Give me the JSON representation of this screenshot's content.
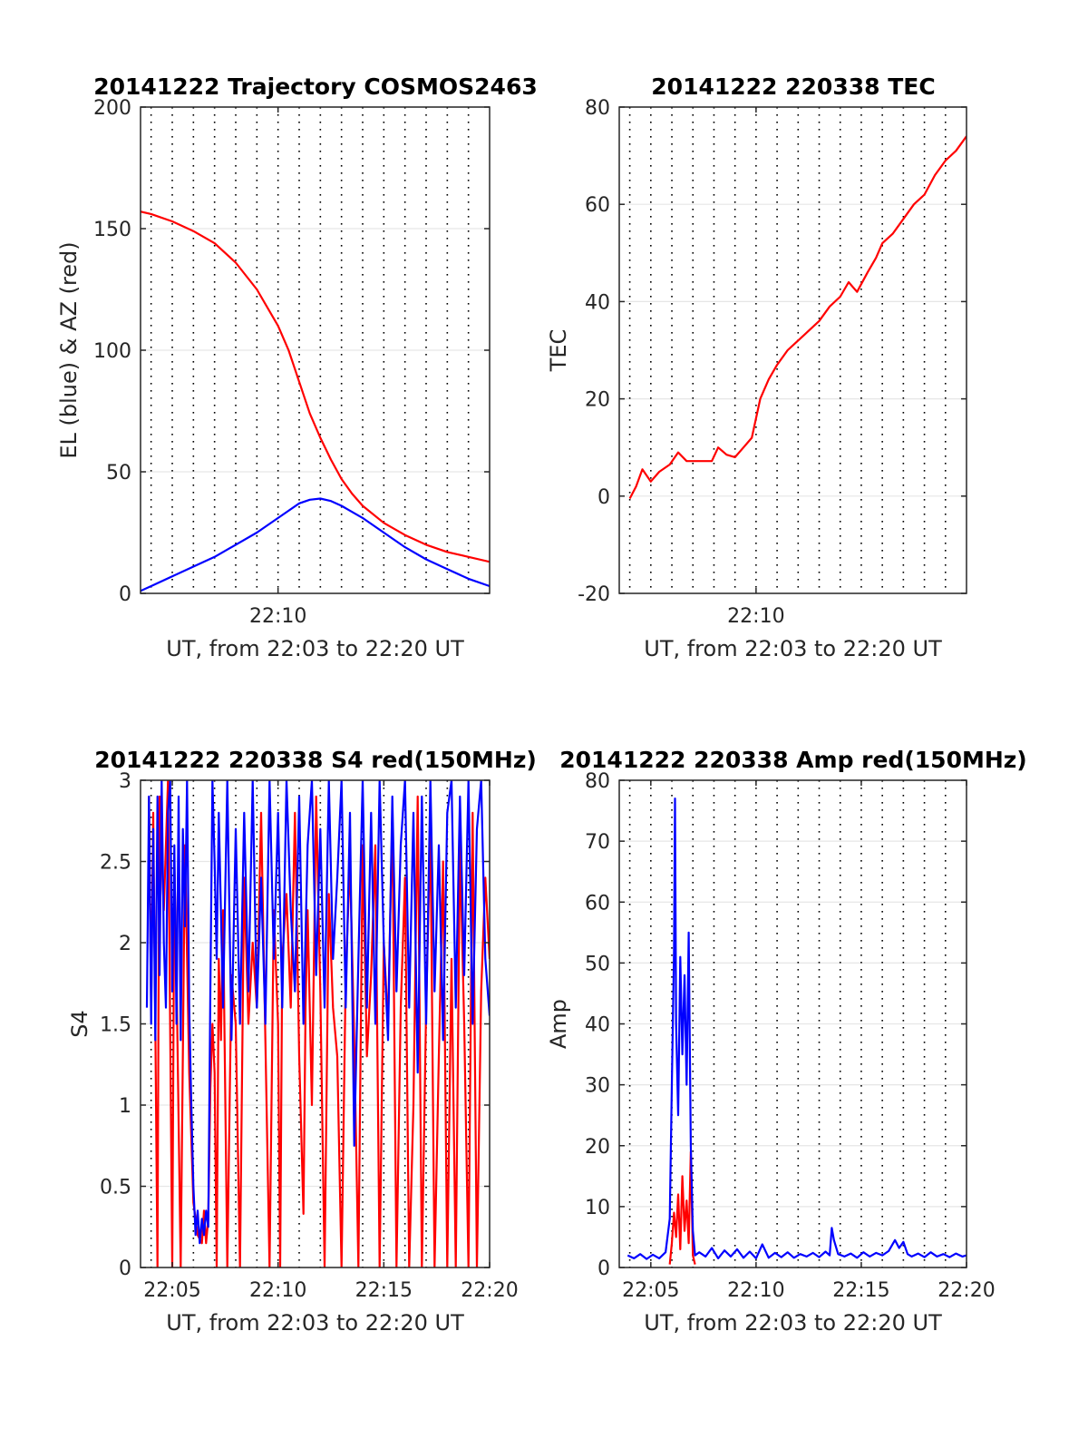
{
  "colors": {
    "red": "#ff0000",
    "blue": "#0000ff",
    "grid_major": "#e6e6e6",
    "grid_minute": "#000000",
    "axes": "#262626"
  },
  "chart_data": [
    {
      "type": "line",
      "title": "20141222 Trajectory COSMOS2463",
      "xlabel": "UT, from 22:03 to 22:20 UT",
      "ylabel": "EL (blue) & AZ (red)",
      "x_unit": "minutes after 22:00 UT",
      "xlim": [
        3.5,
        20
      ],
      "ylim": [
        0,
        200
      ],
      "yticks": [
        "0",
        "50",
        "100",
        "150",
        "200"
      ],
      "xticks": [
        {
          "x": 10,
          "label": "22:10"
        }
      ],
      "minute_gridlines": [
        4,
        5,
        6,
        7,
        8,
        9,
        10,
        11,
        12,
        13,
        14,
        15,
        16,
        17,
        18,
        19
      ],
      "grid": true,
      "series": [
        {
          "color": "red",
          "x": [
            3.5,
            4,
            5,
            6,
            7,
            8,
            9,
            10,
            10.5,
            11,
            11.5,
            12,
            12.5,
            13,
            13.5,
            14,
            15,
            16,
            17,
            18,
            19,
            20
          ],
          "y": [
            157,
            156,
            153,
            149,
            144,
            136,
            125,
            110,
            100,
            87,
            74,
            64,
            55,
            47,
            41,
            36,
            29,
            24,
            20,
            17,
            15,
            13
          ]
        },
        {
          "color": "blue",
          "x": [
            3.5,
            4,
            5,
            6,
            7,
            8,
            9,
            10,
            10.5,
            11,
            11.5,
            12,
            12.5,
            13,
            14,
            15,
            16,
            17,
            18,
            19,
            20
          ],
          "y": [
            1,
            3,
            7,
            11,
            15,
            20,
            25,
            31,
            34,
            37,
            38.5,
            39,
            38,
            36,
            31,
            25,
            19,
            14,
            10,
            6,
            3
          ]
        }
      ]
    },
    {
      "type": "line",
      "title": "20141222 220338 TEC",
      "xlabel": "UT, from 22:03 to 22:20 UT",
      "ylabel": "TEC",
      "x_unit": "minutes after 22:00 UT",
      "xlim": [
        3.5,
        20
      ],
      "ylim": [
        -20,
        80
      ],
      "yticks": [
        "-20",
        "0",
        "20",
        "40",
        "60",
        "80"
      ],
      "xticks": [
        {
          "x": 10,
          "label": "22:10"
        }
      ],
      "minute_gridlines": [
        4,
        5,
        6,
        7,
        8,
        9,
        10,
        11,
        12,
        13,
        14,
        15,
        16,
        17,
        18,
        19
      ],
      "grid": true,
      "series": [
        {
          "color": "red",
          "x": [
            4.0,
            4.3,
            4.6,
            5.0,
            5.4,
            5.9,
            6.3,
            6.7,
            7.0,
            7.5,
            7.9,
            8.2,
            8.6,
            9.0,
            9.4,
            9.8,
            10.2,
            10.6,
            11.0,
            11.5,
            12.0,
            12.5,
            13.0,
            13.5,
            14.0,
            14.4,
            14.8,
            15.3,
            15.7,
            16.0,
            16.5,
            17.0,
            17.5,
            18.0,
            18.5,
            19.0,
            19.5,
            20.0
          ],
          "y": [
            -0.5,
            2,
            5.5,
            3,
            5,
            6.5,
            9,
            7.2,
            7.2,
            7.2,
            7.2,
            10,
            8.5,
            8,
            10,
            12,
            20,
            24,
            27,
            30,
            32,
            34,
            36,
            39,
            41,
            44,
            42,
            46,
            49,
            52,
            54,
            57,
            60,
            62,
            66,
            69,
            71,
            74
          ]
        }
      ]
    },
    {
      "type": "line",
      "title": "20141222 220338 S4 red(150MHz)",
      "xlabel": "UT, from 22:03 to 22:20 UT",
      "ylabel": "S4",
      "x_unit": "minutes after 22:00 UT",
      "xlim": [
        3.5,
        20
      ],
      "ylim": [
        0,
        3
      ],
      "yticks": [
        "0",
        "0.5",
        "1",
        "1.5",
        "2",
        "2.5",
        "3"
      ],
      "xticks": [
        {
          "x": 5,
          "label": "22:05"
        },
        {
          "x": 10,
          "label": "22:10"
        },
        {
          "x": 15,
          "label": "22:15"
        },
        {
          "x": 20,
          "label": "22:20"
        }
      ],
      "minute_gridlines": [
        4,
        5,
        6,
        7,
        8,
        9,
        10,
        11,
        12,
        13,
        14,
        15,
        16,
        17,
        18,
        19
      ],
      "grid": true,
      "series": [
        {
          "color": "red",
          "x": [
            3.9,
            4.0,
            4.1,
            4.2,
            4.3,
            4.35,
            4.4,
            4.6,
            4.8,
            5.0,
            5.1,
            5.2,
            5.4,
            5.6,
            5.8,
            6.0,
            6.2,
            6.4,
            6.5,
            6.6,
            6.7,
            6.8,
            6.9,
            7.0,
            7.1,
            7.2,
            7.3,
            7.4,
            7.6,
            7.8,
            8.0,
            8.2,
            8.4,
            8.6,
            8.8,
            9.0,
            9.2,
            9.4,
            9.6,
            9.8,
            10.0,
            10.1,
            10.2,
            10.4,
            10.6,
            10.8,
            11.0,
            11.2,
            11.3,
            11.4,
            11.6,
            11.8,
            12.0,
            12.2,
            12.4,
            12.6,
            12.8,
            13.0,
            13.2,
            13.4,
            13.6,
            13.8,
            14.0,
            14.2,
            14.4,
            14.6,
            14.8,
            15.0,
            15.2,
            15.4,
            15.6,
            15.8,
            16.0,
            16.2,
            16.4,
            16.6,
            16.8,
            17.0,
            17.2,
            17.4,
            17.6,
            17.8,
            18.0,
            18.2,
            18.4,
            18.6,
            18.8,
            19.0,
            19.2,
            19.4,
            19.6,
            19.8,
            20.0
          ],
          "y": [
            2.9,
            1.6,
            2.8,
            1.5,
            0,
            1.6,
            2.9,
            2.2,
            3.0,
            0,
            2.5,
            1.8,
            0,
            2.6,
            1.2,
            0.4,
            0.2,
            0.15,
            0.35,
            0.15,
            0.3,
            1.1,
            1.5,
            1.2,
            0,
            1.9,
            1.4,
            2.2,
            0,
            1.8,
            1.5,
            0,
            2.4,
            1.5,
            2.0,
            1.6,
            2.8,
            1.4,
            0,
            2.2,
            1.5,
            0,
            1.9,
            2.3,
            1.6,
            2.8,
            1.3,
            0.33,
            1.6,
            2.2,
            1.0,
            2.9,
            1.7,
            0,
            2.3,
            1.6,
            1.3,
            0,
            1.8,
            2.5,
            1.4,
            0,
            2.6,
            1.3,
            1.8,
            2.6,
            0,
            2.0,
            1.5,
            2.8,
            0,
            1.6,
            2.4,
            0,
            1.0,
            2.9,
            0,
            1.6,
            2.7,
            0,
            1.3,
            2.5,
            0,
            1.9,
            0,
            2.6,
            1.5,
            0,
            2.8,
            0,
            1.7,
            2.4,
            1.9
          ]
        },
        {
          "color": "blue",
          "x": [
            3.8,
            3.9,
            4.0,
            4.1,
            4.2,
            4.3,
            4.4,
            4.5,
            4.6,
            4.7,
            4.8,
            4.9,
            5.0,
            5.1,
            5.2,
            5.3,
            5.4,
            5.5,
            5.6,
            5.7,
            5.8,
            5.9,
            6.0,
            6.1,
            6.2,
            6.3,
            6.4,
            6.5,
            6.6,
            6.7,
            6.8,
            6.9,
            7.0,
            7.1,
            7.2,
            7.4,
            7.6,
            7.8,
            8.0,
            8.2,
            8.4,
            8.6,
            8.8,
            9.0,
            9.2,
            9.4,
            9.6,
            9.8,
            10.0,
            10.2,
            10.4,
            10.6,
            10.8,
            11.0,
            11.2,
            11.4,
            11.6,
            11.8,
            12.0,
            12.2,
            12.4,
            12.6,
            12.8,
            13.0,
            13.2,
            13.4,
            13.6,
            13.8,
            14.0,
            14.2,
            14.4,
            14.6,
            14.8,
            15.0,
            15.2,
            15.4,
            15.6,
            15.8,
            16.0,
            16.2,
            16.4,
            16.6,
            16.8,
            17.0,
            17.2,
            17.4,
            17.6,
            17.8,
            18.0,
            18.2,
            18.4,
            18.6,
            18.8,
            19.0,
            19.2,
            19.4,
            19.6,
            19.8,
            20.0
          ],
          "y": [
            1.6,
            2.9,
            1.5,
            2.7,
            1.4,
            2.9,
            1.8,
            3.0,
            2.0,
            1.6,
            2.8,
            3.0,
            1.7,
            2.6,
            1.5,
            2.9,
            1.4,
            2.7,
            2.1,
            3.0,
            1.6,
            1.0,
            0.5,
            0.2,
            0.35,
            0.15,
            0.3,
            0.2,
            0.35,
            0.25,
            1.7,
            3.0,
            2.5,
            1.9,
            2.8,
            1.6,
            3.0,
            1.4,
            2.7,
            1.5,
            2.8,
            1.7,
            3.0,
            1.6,
            2.4,
            1.5,
            3.0,
            1.9,
            2.8,
            1.6,
            3.0,
            2.2,
            1.7,
            2.9,
            1.5,
            2.6,
            3.0,
            1.8,
            2.7,
            1.6,
            3.0,
            1.9,
            2.4,
            3.0,
            1.6,
            2.8,
            0.75,
            1.9,
            3.0,
            1.6,
            2.8,
            1.5,
            3.0,
            2.0,
            1.4,
            2.9,
            1.7,
            2.6,
            3.0,
            1.6,
            2.8,
            1.2,
            2.9,
            1.5,
            3.0,
            1.7,
            2.6,
            1.4,
            2.8,
            3.0,
            1.6,
            2.9,
            1.8,
            3.0,
            1.5,
            2.7,
            3.0,
            1.9,
            1.55
          ]
        }
      ]
    },
    {
      "type": "line",
      "title": "20141222 220338 Amp red(150MHz)",
      "xlabel": "UT, from 22:03 to 22:20 UT",
      "ylabel": "Amp",
      "x_unit": "minutes after 22:00 UT",
      "xlim": [
        3.5,
        20
      ],
      "ylim": [
        0,
        80
      ],
      "yticks": [
        "0",
        "10",
        "20",
        "30",
        "40",
        "50",
        "60",
        "70",
        "80"
      ],
      "xticks": [
        {
          "x": 5,
          "label": "22:05"
        },
        {
          "x": 10,
          "label": "22:10"
        },
        {
          "x": 15,
          "label": "22:15"
        },
        {
          "x": 20,
          "label": "22:20"
        }
      ],
      "minute_gridlines": [
        4,
        5,
        6,
        7,
        8,
        9,
        10,
        11,
        12,
        13,
        14,
        15,
        16,
        17,
        18,
        19
      ],
      "grid": true,
      "series": [
        {
          "color": "red",
          "x": [
            5.9,
            6.0,
            6.1,
            6.2,
            6.3,
            6.4,
            6.5,
            6.6,
            6.7,
            6.8,
            6.9,
            7.0,
            7.1
          ],
          "y": [
            0.5,
            4,
            9,
            5,
            12,
            3,
            15,
            6,
            11,
            4,
            19,
            2,
            0.5
          ]
        },
        {
          "color": "blue",
          "x": [
            3.9,
            4.2,
            4.5,
            4.8,
            5.1,
            5.4,
            5.7,
            5.9,
            6.0,
            6.1,
            6.15,
            6.2,
            6.3,
            6.4,
            6.5,
            6.6,
            6.7,
            6.8,
            6.9,
            7.0,
            7.1,
            7.3,
            7.6,
            7.9,
            8.2,
            8.5,
            8.8,
            9.1,
            9.4,
            9.7,
            10.0,
            10.3,
            10.6,
            10.9,
            11.2,
            11.5,
            11.8,
            12.1,
            12.4,
            12.7,
            13.0,
            13.3,
            13.5,
            13.6,
            13.7,
            13.9,
            14.2,
            14.5,
            14.8,
            15.1,
            15.4,
            15.7,
            16.0,
            16.3,
            16.6,
            16.8,
            17.0,
            17.2,
            17.4,
            17.7,
            18.0,
            18.3,
            18.6,
            18.9,
            19.2,
            19.5,
            19.8,
            20.0
          ],
          "y": [
            2,
            1.5,
            2.2,
            1.4,
            2.1,
            1.5,
            2.5,
            8,
            30,
            52,
            77,
            40,
            25,
            51,
            35,
            48,
            30,
            55,
            20,
            6,
            2,
            2.5,
            1.8,
            3.2,
            1.5,
            2.8,
            1.8,
            3,
            1.6,
            2.6,
            1.5,
            3.8,
            1.6,
            2.4,
            1.7,
            2.5,
            1.6,
            2.2,
            1.8,
            2.4,
            1.7,
            2.6,
            2.0,
            6.5,
            4.5,
            2.2,
            1.8,
            2.3,
            1.6,
            2.5,
            1.8,
            2.4,
            2.0,
            2.7,
            4.5,
            3.2,
            4.2,
            2.2,
            1.8,
            2.3,
            1.7,
            2.5,
            1.8,
            2.2,
            1.7,
            2.3,
            1.8,
            2.0
          ]
        }
      ]
    }
  ]
}
